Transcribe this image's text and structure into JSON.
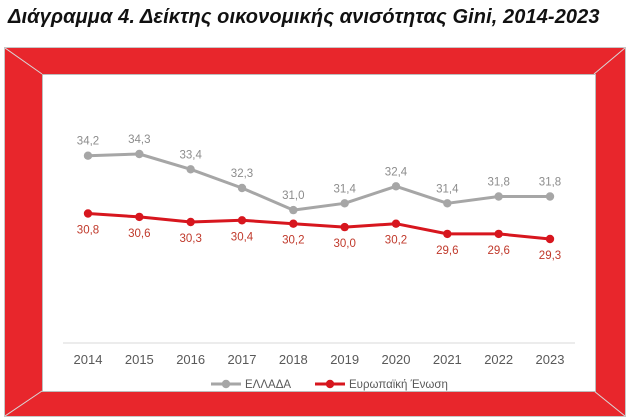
{
  "title": "Διάγραμμα 4. Δείκτης οικονομικής ανισότητας Gini, 2014-2023",
  "colors": {
    "frame_red": "#e8262c",
    "greece_line": "#a6a6a6",
    "eu_line": "#d7161e",
    "greece_label": "#8c8c8c",
    "eu_label": "#c0392b",
    "axis_text": "#595959"
  },
  "chart_data": {
    "type": "line",
    "title": "",
    "xlabel": "",
    "ylabel": "",
    "categories": [
      "2014",
      "2015",
      "2016",
      "2017",
      "2018",
      "2019",
      "2020",
      "2021",
      "2022",
      "2023"
    ],
    "ylim": [
      28,
      35
    ],
    "grid": false,
    "legend_position": "bottom",
    "series": [
      {
        "name": "ΕΛΛΑΔΑ",
        "color": "#a6a6a6",
        "values": [
          34.2,
          34.3,
          33.4,
          32.3,
          31.0,
          31.4,
          32.4,
          31.4,
          31.8,
          31.8
        ],
        "labels": [
          "34,2",
          "34,3",
          "33,4",
          "32,3",
          "31,0",
          "31,4",
          "32,4",
          "31,4",
          "31,8",
          "31,8"
        ]
      },
      {
        "name": "Ευρωπαϊκή Ένωση",
        "color": "#d7161e",
        "values": [
          30.8,
          30.6,
          30.3,
          30.4,
          30.2,
          30.0,
          30.2,
          29.6,
          29.6,
          29.3
        ],
        "labels": [
          "30,8",
          "30,6",
          "30,3",
          "30,4",
          "30,2",
          "30,0",
          "30,2",
          "29,6",
          "29,6",
          "29,3"
        ]
      }
    ]
  }
}
